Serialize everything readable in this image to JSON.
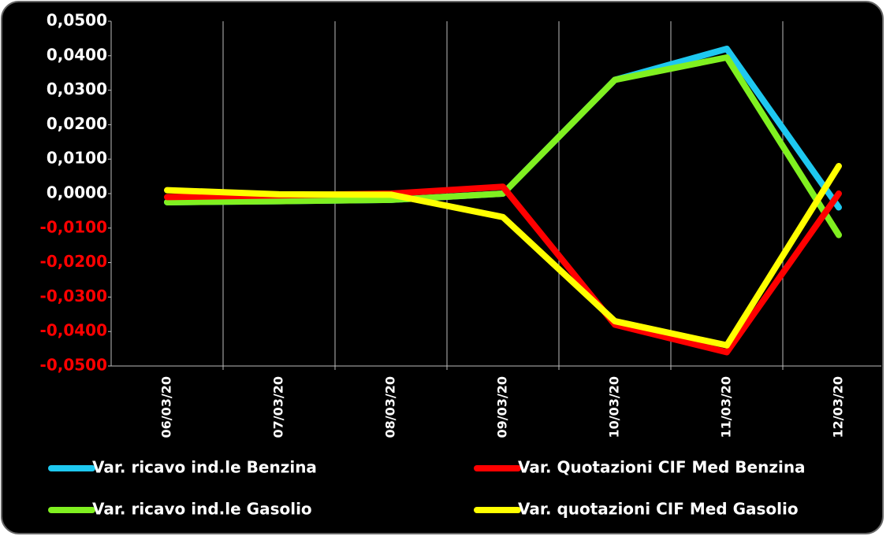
{
  "chart_data": {
    "type": "line",
    "categories": [
      "06/03/20",
      "07/03/20",
      "08/03/20",
      "09/03/20",
      "10/03/20",
      "11/03/20",
      "12/03/20"
    ],
    "series": [
      {
        "name": "Var. ricavo ind.le Benzina",
        "color": "#1ec8f0",
        "values": [
          -0.0025,
          -0.0022,
          -0.0018,
          0.0,
          0.033,
          0.042,
          -0.004
        ]
      },
      {
        "name": "Var. ricavo ind.le Gasolio",
        "color": "#80f020",
        "values": [
          -0.0025,
          -0.0022,
          -0.0018,
          0.0,
          0.033,
          0.0395,
          -0.012
        ]
      },
      {
        "name": "Var. Quotazioni CIF Med Benzina",
        "color": "#ff0000",
        "values": [
          -0.001,
          -0.0005,
          0.0,
          0.002,
          -0.038,
          -0.046,
          0.0
        ]
      },
      {
        "name": "Var. quotazioni CIF Med Gasolio",
        "color": "#ffff00",
        "values": [
          0.001,
          -0.0002,
          -0.0003,
          -0.0068,
          -0.037,
          -0.044,
          0.008
        ]
      }
    ],
    "legend_order": [
      0,
      2,
      1,
      3
    ],
    "ylim": [
      -0.05,
      0.05
    ],
    "yticks": [
      {
        "value": 0.05,
        "label": "0,0500"
      },
      {
        "value": 0.04,
        "label": "0,0400"
      },
      {
        "value": 0.03,
        "label": "0,0300"
      },
      {
        "value": 0.02,
        "label": "0,0200"
      },
      {
        "value": 0.01,
        "label": "0,0100"
      },
      {
        "value": 0,
        "label": "0,0000"
      },
      {
        "value": -0.01,
        "label": "-0,0100"
      },
      {
        "value": -0.02,
        "label": "-0,0200"
      },
      {
        "value": -0.03,
        "label": "-0,0300"
      },
      {
        "value": -0.04,
        "label": "-0,0400"
      },
      {
        "value": -0.05,
        "label": "-0,0500"
      }
    ],
    "positive_tick_color": "#ffffff",
    "negative_tick_color": "#ff0000",
    "grid": true
  }
}
